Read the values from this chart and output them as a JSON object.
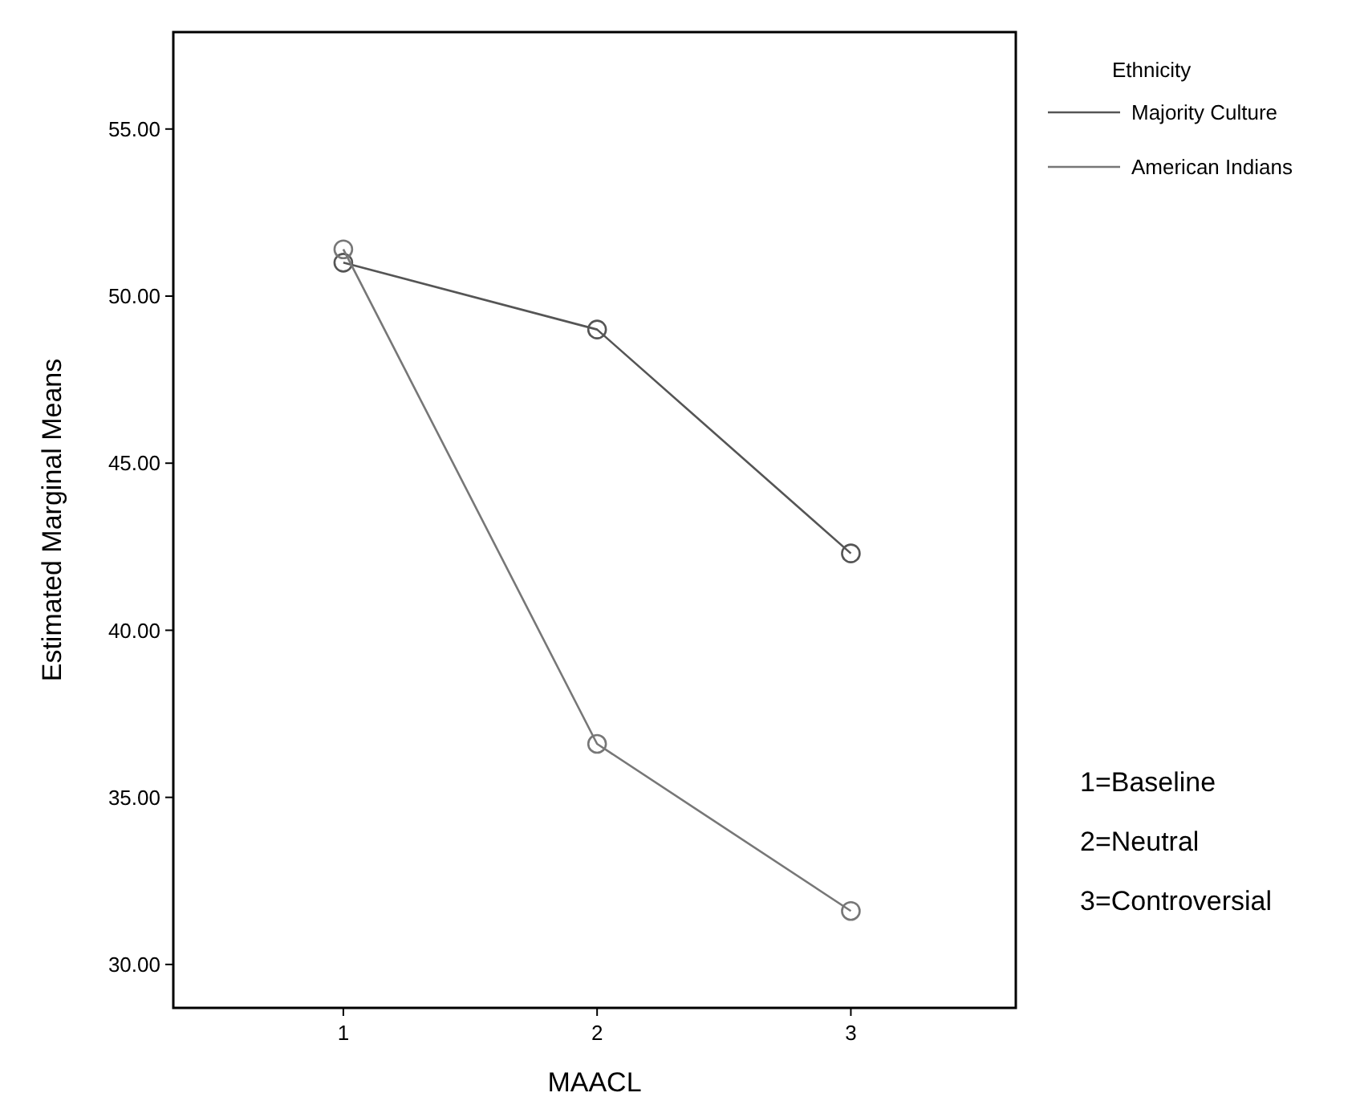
{
  "chart_data": {
    "type": "line",
    "xlabel": "MAACL",
    "ylabel": "Estimated Marginal Means",
    "legend_title": "Ethnicity",
    "legend": "top right",
    "marker": "circle",
    "grid": false,
    "x": [
      1,
      2,
      3
    ],
    "xlim": [
      0.33,
      3.65
    ],
    "xticks": [
      1,
      2,
      3
    ],
    "ylim": [
      28.7,
      57.9
    ],
    "yticks": [
      {
        "value": 30,
        "label": "30.00"
      },
      {
        "value": 35,
        "label": "35.00"
      },
      {
        "value": 40,
        "label": "40.00"
      },
      {
        "value": 45,
        "label": "45.00"
      },
      {
        "value": 50,
        "label": "50.00"
      },
      {
        "value": 55,
        "label": "55.00"
      }
    ],
    "series": [
      {
        "name": "Majority Culture",
        "color": "#555555",
        "values": [
          51.0,
          49.0,
          42.3
        ]
      },
      {
        "name": "American Indians",
        "color": "#777777",
        "values": [
          51.4,
          36.6,
          31.6
        ]
      }
    ],
    "annotations": [
      "1=Baseline",
      "2=Neutral",
      "3=Controversial"
    ]
  }
}
